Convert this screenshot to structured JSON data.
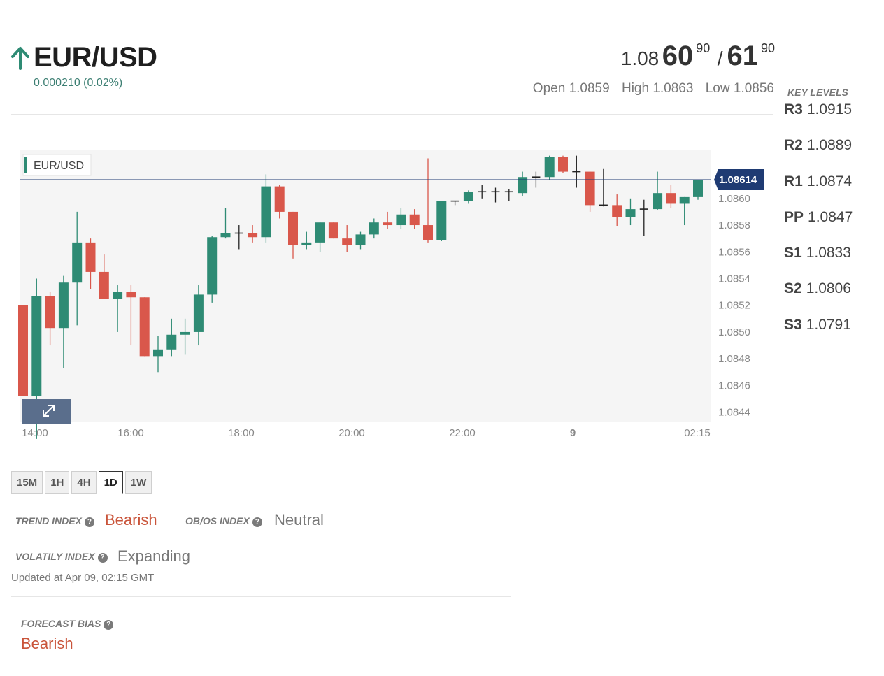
{
  "header": {
    "pair": "EUR/USD",
    "change": "0.000210 (0.02%)",
    "bid_prefix": "1.08",
    "bid_big": "60",
    "bid_sup": "90",
    "slash": "/",
    "ask_big": "61",
    "ask_sup": "90",
    "open_label": "Open",
    "open_value": "1.0859",
    "high_label": "High",
    "high_value": "1.0863",
    "low_label": "Low",
    "low_value": "1.0856"
  },
  "key_levels": {
    "title": "KEY LEVELS",
    "items": [
      {
        "label": "R3",
        "value": "1.0915"
      },
      {
        "label": "R2",
        "value": "1.0889"
      },
      {
        "label": "R1",
        "value": "1.0874"
      },
      {
        "label": "PP",
        "value": "1.0847"
      },
      {
        "label": "S1",
        "value": "1.0833"
      },
      {
        "label": "S2",
        "value": "1.0806"
      },
      {
        "label": "S3",
        "value": "1.0791"
      }
    ]
  },
  "tabs": [
    "15M",
    "1H",
    "4H",
    "1D",
    "1W"
  ],
  "active_tab": "1D",
  "indices": {
    "trend_label": "TREND INDEX",
    "trend_value": "Bearish",
    "obos_label": "OB/OS INDEX",
    "obos_value": "Neutral",
    "volatility_label": "VOLATILY INDEX",
    "volatility_value": "Expanding",
    "updated": "Updated at Apr 09, 02:15 GMT"
  },
  "forecast": {
    "label": "FORECAST BIAS",
    "value": "Bearish"
  },
  "help_icon": "?",
  "chart_data": {
    "type": "candlestick",
    "legend": "EUR/USD",
    "current_price": "1.08614",
    "current_value": 1.08614,
    "y_range": [
      1.08433,
      1.08636
    ],
    "y_ticks": [
      1.0844,
      1.0846,
      1.0848,
      1.085,
      1.0852,
      1.0854,
      1.0856,
      1.0858,
      1.086
    ],
    "x_ticks": [
      "14:00",
      "16:00",
      "18:00",
      "20:00",
      "22:00",
      "9",
      "02:15"
    ],
    "grid": false,
    "colors": {
      "up": "#2e8b74",
      "down": "#d9574b",
      "doji": "#222222",
      "price_line": "#1f3b73",
      "price_tag": "#1f3b73",
      "plot_bg": "#f5f5f5"
    },
    "candles": [
      {
        "o": 1.0852,
        "h": 1.0852,
        "l": 1.08452,
        "c": 1.08452
      },
      {
        "o": 1.08452,
        "h": 1.0854,
        "l": 1.0842,
        "c": 1.08527
      },
      {
        "o": 1.08527,
        "h": 1.0853,
        "l": 1.0849,
        "c": 1.08503
      },
      {
        "o": 1.08503,
        "h": 1.08542,
        "l": 1.08473,
        "c": 1.08537
      },
      {
        "o": 1.08537,
        "h": 1.0859,
        "l": 1.08505,
        "c": 1.08567
      },
      {
        "o": 1.08567,
        "h": 1.0857,
        "l": 1.08532,
        "c": 1.08545
      },
      {
        "o": 1.08545,
        "h": 1.08558,
        "l": 1.08525,
        "c": 1.08525
      },
      {
        "o": 1.08525,
        "h": 1.08535,
        "l": 1.085,
        "c": 1.0853
      },
      {
        "o": 1.0853,
        "h": 1.08535,
        "l": 1.0849,
        "c": 1.08526
      },
      {
        "o": 1.08526,
        "h": 1.08526,
        "l": 1.08482,
        "c": 1.08482
      },
      {
        "o": 1.08482,
        "h": 1.08497,
        "l": 1.0847,
        "c": 1.08487
      },
      {
        "o": 1.08487,
        "h": 1.0851,
        "l": 1.08482,
        "c": 1.08498
      },
      {
        "o": 1.08498,
        "h": 1.0851,
        "l": 1.08483,
        "c": 1.085
      },
      {
        "o": 1.085,
        "h": 1.08535,
        "l": 1.0849,
        "c": 1.08528
      },
      {
        "o": 1.08528,
        "h": 1.08572,
        "l": 1.08522,
        "c": 1.08571
      },
      {
        "o": 1.08571,
        "h": 1.08593,
        "l": 1.0857,
        "c": 1.08574
      },
      {
        "o": 1.08574,
        "h": 1.0858,
        "l": 1.08562,
        "c": 1.08574
      },
      {
        "o": 1.08574,
        "h": 1.0858,
        "l": 1.08567,
        "c": 1.08571
      },
      {
        "o": 1.08571,
        "h": 1.08618,
        "l": 1.08567,
        "c": 1.08609
      },
      {
        "o": 1.08609,
        "h": 1.0861,
        "l": 1.08585,
        "c": 1.0859
      },
      {
        "o": 1.0859,
        "h": 1.0859,
        "l": 1.08555,
        "c": 1.08565
      },
      {
        "o": 1.08565,
        "h": 1.08575,
        "l": 1.08562,
        "c": 1.08567
      },
      {
        "o": 1.08567,
        "h": 1.08582,
        "l": 1.0856,
        "c": 1.08582
      },
      {
        "o": 1.08582,
        "h": 1.08582,
        "l": 1.0857,
        "c": 1.0857
      },
      {
        "o": 1.0857,
        "h": 1.0858,
        "l": 1.0856,
        "c": 1.08565
      },
      {
        "o": 1.08565,
        "h": 1.08575,
        "l": 1.08562,
        "c": 1.08573
      },
      {
        "o": 1.08573,
        "h": 1.08585,
        "l": 1.0857,
        "c": 1.08582
      },
      {
        "o": 1.08582,
        "h": 1.0859,
        "l": 1.08577,
        "c": 1.0858
      },
      {
        "o": 1.0858,
        "h": 1.08593,
        "l": 1.08577,
        "c": 1.08588
      },
      {
        "o": 1.08588,
        "h": 1.08592,
        "l": 1.08577,
        "c": 1.0858
      },
      {
        "o": 1.0858,
        "h": 1.0863,
        "l": 1.08567,
        "c": 1.08569
      },
      {
        "o": 1.08569,
        "h": 1.08598,
        "l": 1.08568,
        "c": 1.08598
      },
      {
        "o": 1.08598,
        "h": 1.08598,
        "l": 1.08595,
        "c": 1.08598
      },
      {
        "o": 1.08598,
        "h": 1.08606,
        "l": 1.08596,
        "c": 1.08605
      },
      {
        "o": 1.08605,
        "h": 1.0861,
        "l": 1.086,
        "c": 1.08605
      },
      {
        "o": 1.08605,
        "h": 1.08608,
        "l": 1.08597,
        "c": 1.08605
      },
      {
        "o": 1.08605,
        "h": 1.08607,
        "l": 1.08598,
        "c": 1.08604
      },
      {
        "o": 1.08604,
        "h": 1.0862,
        "l": 1.08602,
        "c": 1.08616
      },
      {
        "o": 1.08616,
        "h": 1.0862,
        "l": 1.08608,
        "c": 1.08616
      },
      {
        "o": 1.08616,
        "h": 1.08632,
        "l": 1.08614,
        "c": 1.08631
      },
      {
        "o": 1.08631,
        "h": 1.08632,
        "l": 1.08619,
        "c": 1.0862
      },
      {
        "o": 1.0862,
        "h": 1.08632,
        "l": 1.08608,
        "c": 1.0862
      },
      {
        "o": 1.0862,
        "h": 1.0862,
        "l": 1.0859,
        "c": 1.08595
      },
      {
        "o": 1.08595,
        "h": 1.08622,
        "l": 1.08594,
        "c": 1.08595
      },
      {
        "o": 1.08595,
        "h": 1.08603,
        "l": 1.08579,
        "c": 1.08586
      },
      {
        "o": 1.08586,
        "h": 1.086,
        "l": 1.0858,
        "c": 1.08592
      },
      {
        "o": 1.08592,
        "h": 1.08599,
        "l": 1.08572,
        "c": 1.08592
      },
      {
        "o": 1.08592,
        "h": 1.0862,
        "l": 1.08591,
        "c": 1.08604
      },
      {
        "o": 1.08604,
        "h": 1.0861,
        "l": 1.08593,
        "c": 1.08596
      },
      {
        "o": 1.08596,
        "h": 1.08601,
        "l": 1.0858,
        "c": 1.08601
      },
      {
        "o": 1.08601,
        "h": 1.08614,
        "l": 1.08599,
        "c": 1.08614
      }
    ]
  }
}
